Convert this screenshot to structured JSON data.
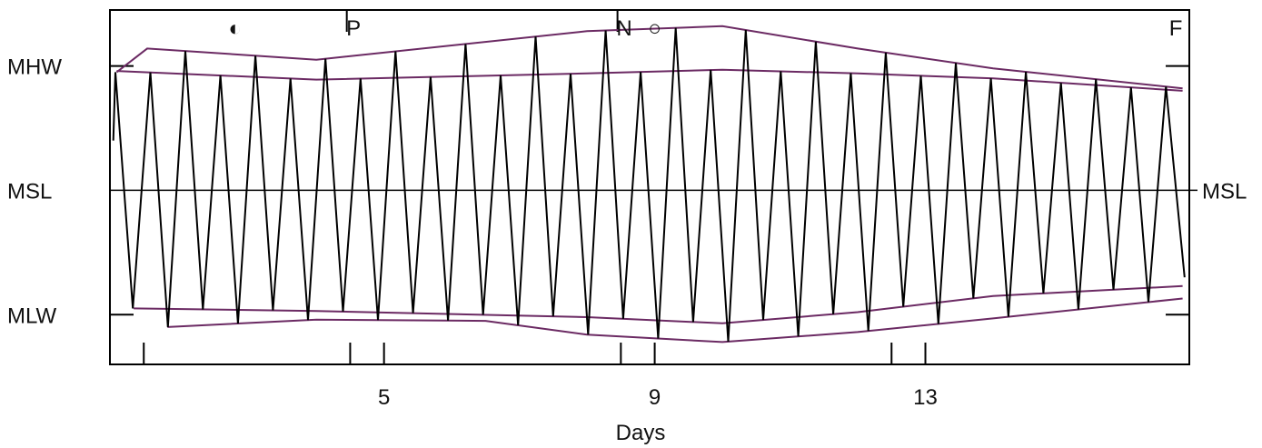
{
  "chart_data": {
    "type": "line",
    "title": "",
    "xlabel": "Days",
    "ylabel": "",
    "xlim": [
      0.95,
      16.9
    ],
    "ylim": [
      -1.4,
      1.45
    ],
    "x_ticks": [
      {
        "value": 5,
        "label": "5"
      },
      {
        "value": 9,
        "label": "9"
      },
      {
        "value": 13,
        "label": "13"
      }
    ],
    "x_minor_ticks": [
      1.45,
      4.5,
      8.5,
      12.5
    ],
    "y_levels": [
      {
        "value": 1,
        "label": "MHW"
      },
      {
        "value": 0,
        "label": "MSL"
      },
      {
        "value": -1,
        "label": "MLW"
      }
    ],
    "right_labels": [
      {
        "value": 0,
        "label": "MSL"
      }
    ],
    "annotations": [
      {
        "x": 2.8,
        "label": "◐",
        "name": "last-quarter-moon"
      },
      {
        "x": 4.55,
        "label": "P",
        "name": "perigee"
      },
      {
        "x": 8.55,
        "label": "N",
        "name": "new-moon"
      },
      {
        "x": 9.0,
        "label": "○",
        "name": "full-moon-circle"
      },
      {
        "x": 16.7,
        "label": "F",
        "name": "full-moon"
      }
    ],
    "annotation_marker_x": [
      4.45,
      8.45
    ],
    "grid": false,
    "colors": {
      "tide": "#000000",
      "envelope": "#6b2a63",
      "axis": "#000000"
    },
    "tide_series": {
      "name": "",
      "period_days": 0.5175,
      "phase": 0.15,
      "start_x": 1.0,
      "end_x": 16.78
    },
    "envelopes": {
      "hw_high": [
        [
          1.05,
          0.95
        ],
        [
          1.5,
          1.14
        ],
        [
          4.0,
          1.05
        ],
        [
          8.0,
          1.28
        ],
        [
          10.0,
          1.32
        ],
        [
          12.0,
          1.14
        ],
        [
          14.0,
          0.98
        ],
        [
          16.8,
          0.82
        ]
      ],
      "hw_low": [
        [
          1.05,
          0.96
        ],
        [
          4.0,
          0.89
        ],
        [
          8.0,
          0.94
        ],
        [
          10.0,
          0.97
        ],
        [
          12.0,
          0.94
        ],
        [
          14.0,
          0.9
        ],
        [
          16.8,
          0.8
        ]
      ],
      "lw_high": [
        [
          1.3,
          -0.95
        ],
        [
          4.0,
          -0.97
        ],
        [
          8.0,
          -1.02
        ],
        [
          10.0,
          -1.07
        ],
        [
          12.0,
          -0.98
        ],
        [
          14.0,
          -0.85
        ],
        [
          16.8,
          -0.77
        ]
      ],
      "lw_low": [
        [
          1.8,
          -1.1
        ],
        [
          4.0,
          -1.04
        ],
        [
          6.5,
          -1.05
        ],
        [
          8.0,
          -1.16
        ],
        [
          10.0,
          -1.22
        ],
        [
          12.0,
          -1.14
        ],
        [
          14.0,
          -1.03
        ],
        [
          16.8,
          -0.87
        ]
      ]
    }
  }
}
